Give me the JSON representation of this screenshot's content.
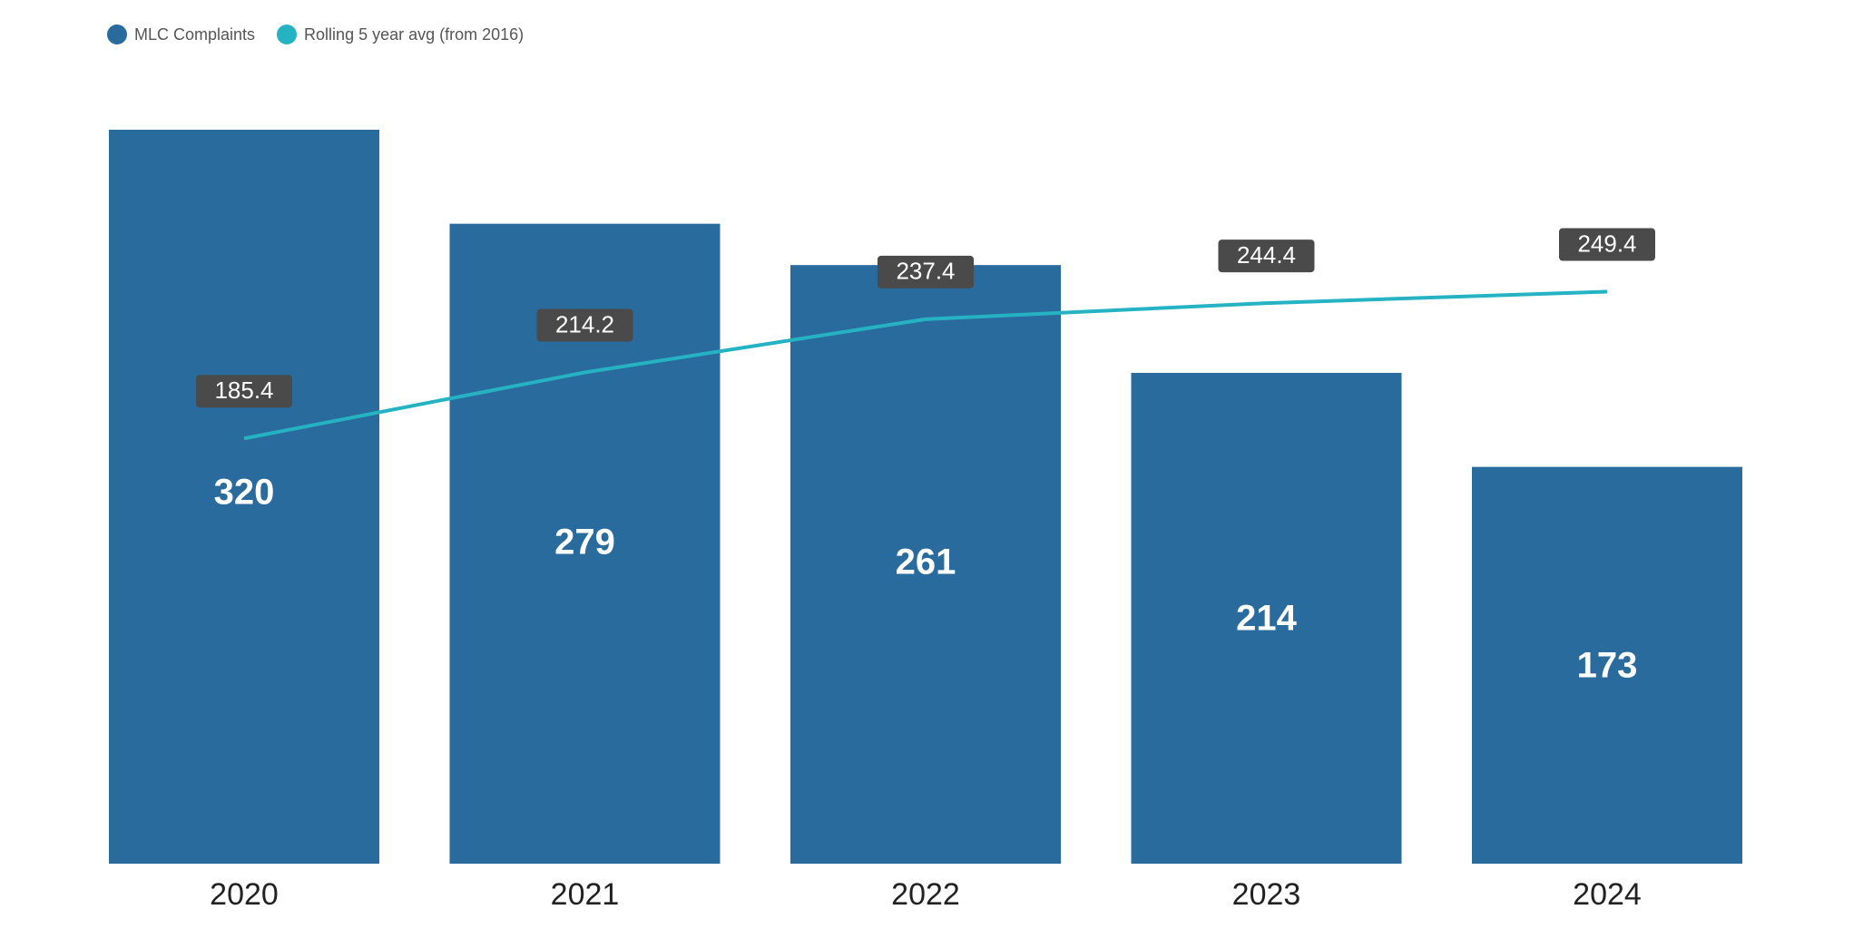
{
  "colors": {
    "bar": "#2a6b9e",
    "line": "#25b3c3",
    "label_box": "#4a4a4a",
    "label_text": "#ffffff",
    "bar_value_text": "#ffffff",
    "axis_text": "#222222"
  },
  "legend": {
    "items": [
      {
        "label": "MLC Complaints",
        "color": "#2a6b9e"
      },
      {
        "label": "Rolling 5 year avg (from 2016)",
        "color": "#25b3c3"
      }
    ],
    "position": "top-left"
  },
  "chart_data": {
    "type": "bar",
    "categories": [
      "2020",
      "2021",
      "2022",
      "2023",
      "2024"
    ],
    "series": [
      {
        "name": "MLC Complaints",
        "type": "bar",
        "values": [
          320,
          279,
          261,
          214,
          173
        ]
      },
      {
        "name": "Rolling 5 year avg (from 2016)",
        "type": "line",
        "values": [
          185.4,
          214.2,
          237.4,
          244.4,
          249.4
        ]
      }
    ],
    "bar_labels": [
      "320",
      "279",
      "261",
      "214",
      "173"
    ],
    "line_labels": [
      "185.4",
      "214.2",
      "237.4",
      "244.4",
      "249.4"
    ],
    "ylim": [
      0,
      320
    ],
    "grid": false,
    "y_axis_shown": false
  }
}
